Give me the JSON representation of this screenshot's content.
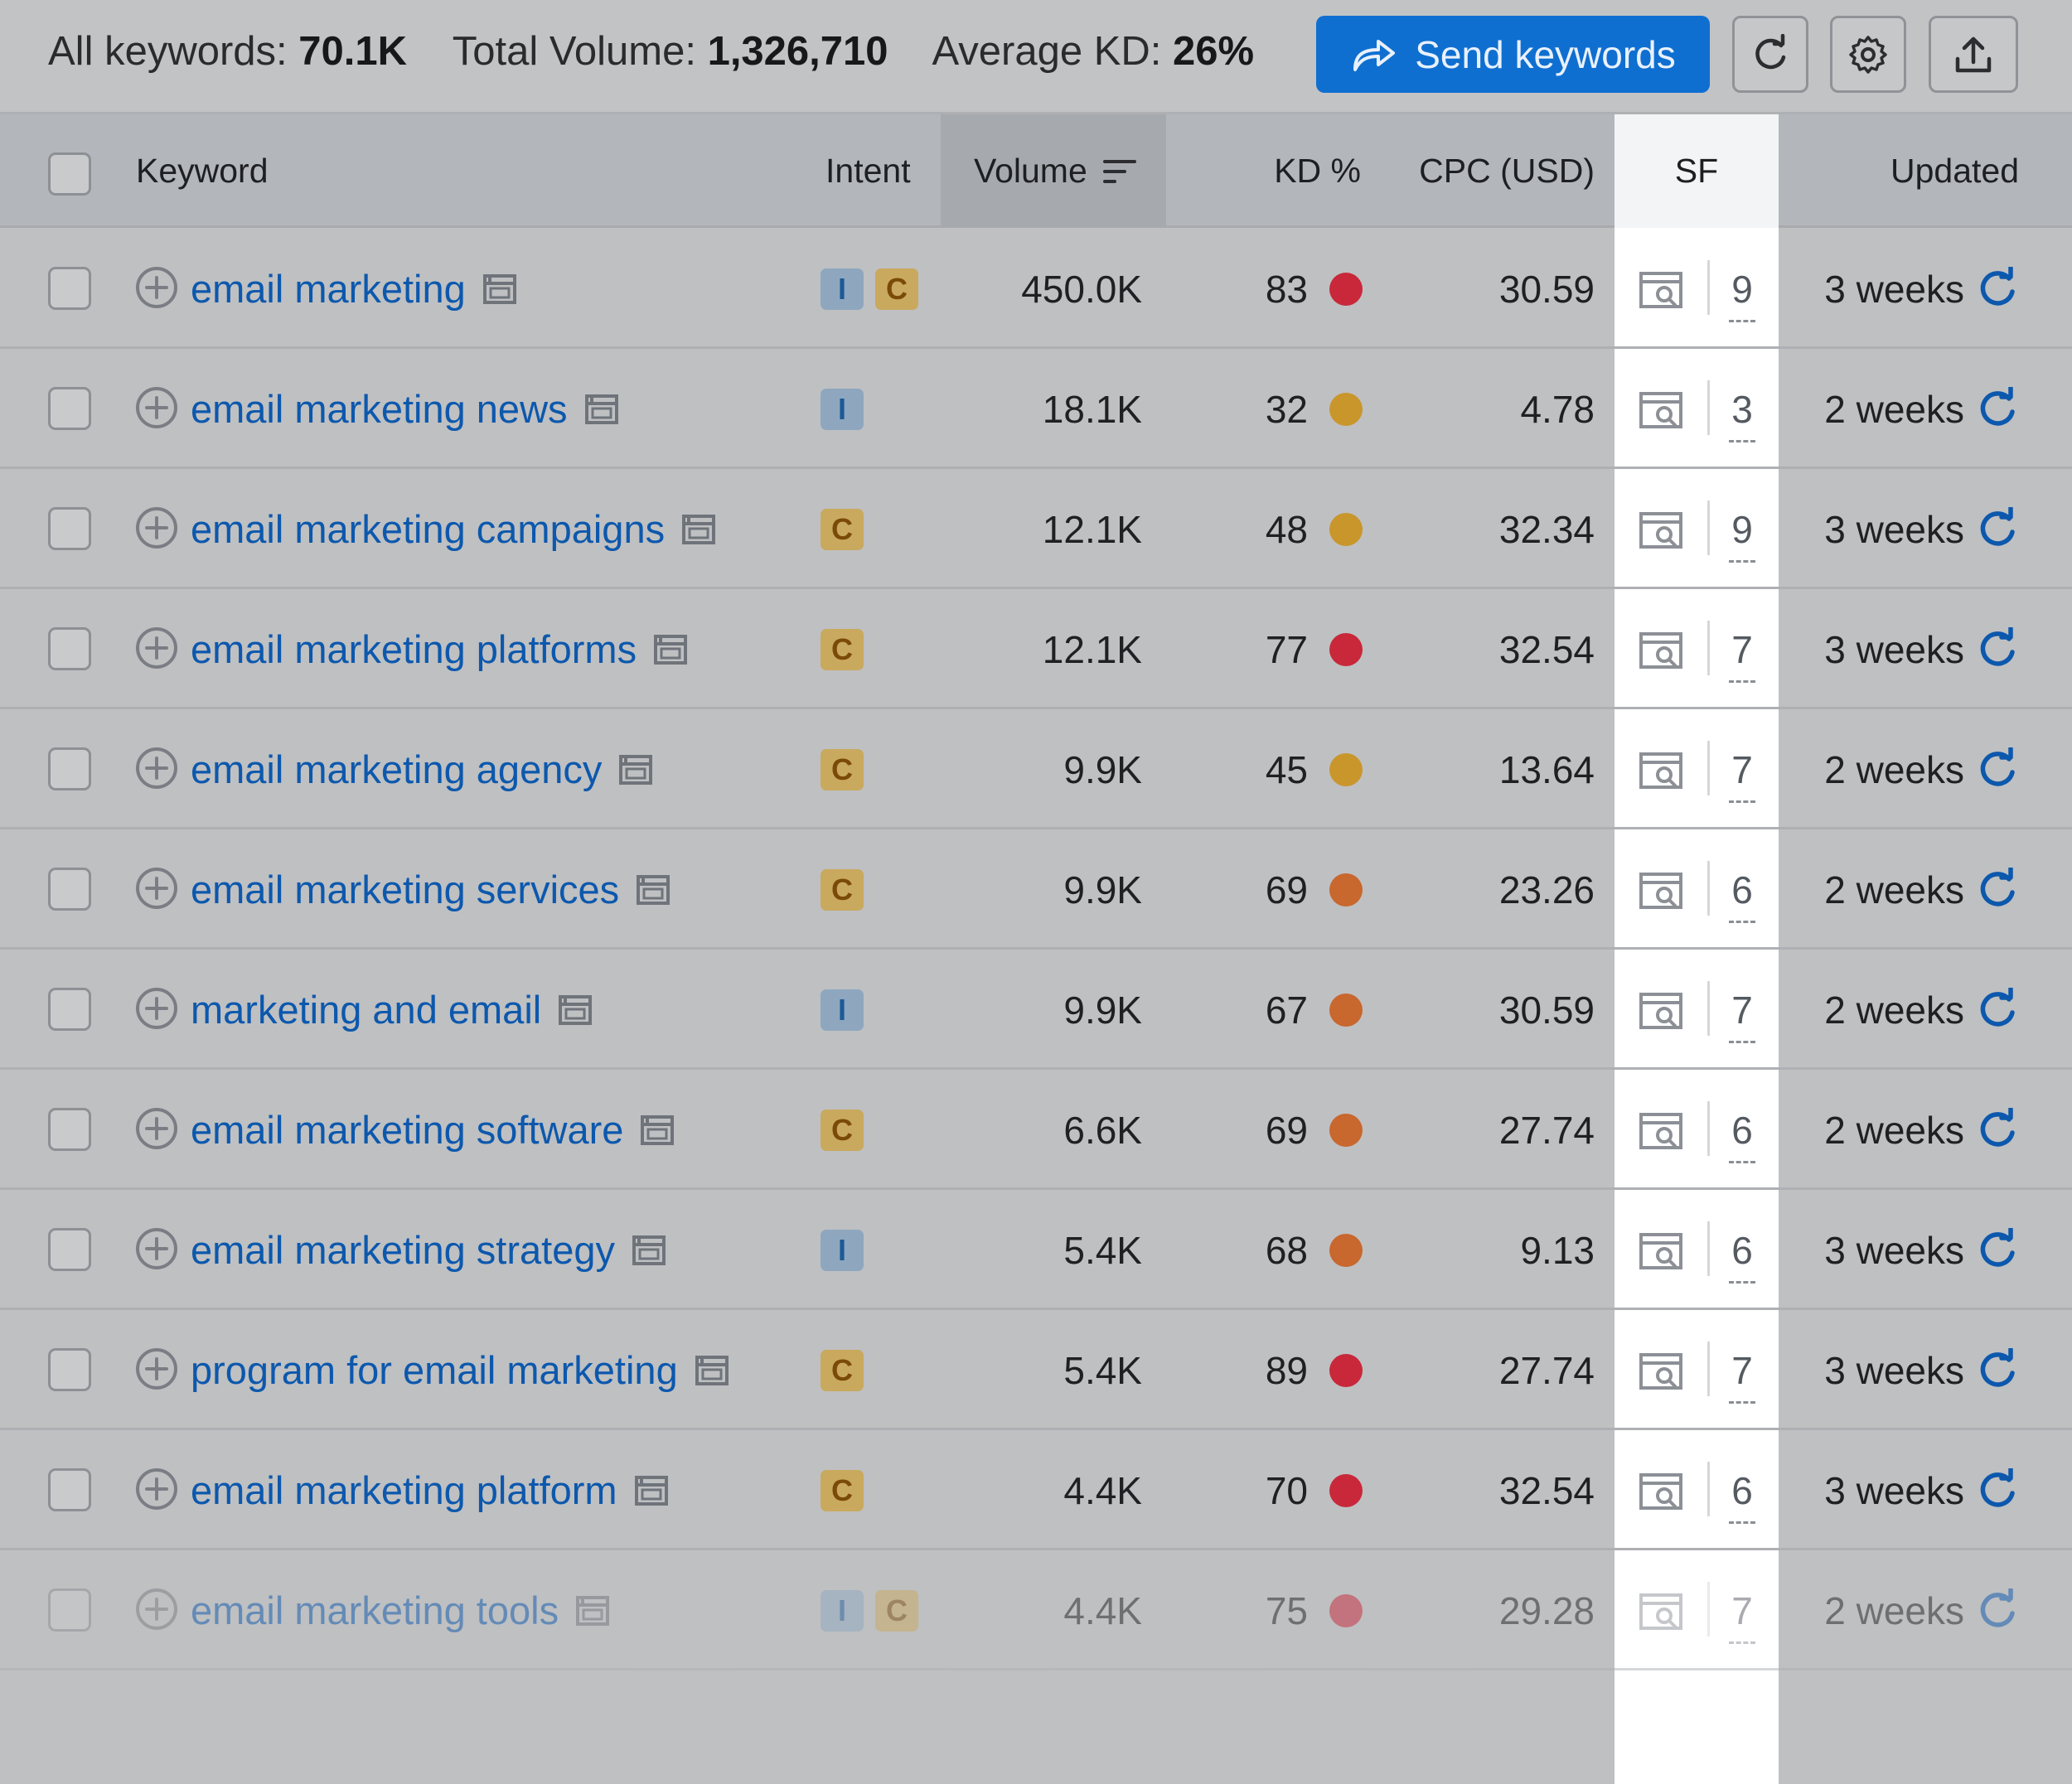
{
  "summary": {
    "all_keywords_label": "All keywords:",
    "all_keywords_value": "70.1K",
    "total_volume_label": "Total Volume:",
    "total_volume_value": "1,326,710",
    "average_kd_label": "Average KD:",
    "average_kd_value": "26%"
  },
  "toolbar": {
    "send_label": "Send keywords",
    "icons": [
      "share-arrow-icon",
      "refresh-icon",
      "gear-icon",
      "export-icon"
    ]
  },
  "columns": {
    "keyword": "Keyword",
    "intent": "Intent",
    "volume": "Volume",
    "kd": "KD %",
    "cpc": "CPC (USD)",
    "sf": "SF",
    "updated": "Updated"
  },
  "colors": {
    "accent": "#0f6fd1",
    "kd_red": "#c8283a",
    "kd_yellow": "#c9962c",
    "kd_orange": "#c8672e",
    "link": "#0c58ad"
  },
  "rows": [
    {
      "keyword": "email marketing",
      "intents": [
        "I",
        "C"
      ],
      "volume": "450.0K",
      "kd": "83",
      "kd_color": "#c8283a",
      "cpc": "30.59",
      "sf": "9",
      "updated": "3 weeks"
    },
    {
      "keyword": "email marketing news",
      "intents": [
        "I"
      ],
      "volume": "18.1K",
      "kd": "32",
      "kd_color": "#c9962c",
      "cpc": "4.78",
      "sf": "3",
      "updated": "2 weeks"
    },
    {
      "keyword": "email marketing campaigns",
      "intents": [
        "C"
      ],
      "volume": "12.1K",
      "kd": "48",
      "kd_color": "#c9962c",
      "cpc": "32.34",
      "sf": "9",
      "updated": "3 weeks"
    },
    {
      "keyword": "email marketing platforms",
      "intents": [
        "C"
      ],
      "volume": "12.1K",
      "kd": "77",
      "kd_color": "#c8283a",
      "cpc": "32.54",
      "sf": "7",
      "updated": "3 weeks"
    },
    {
      "keyword": "email marketing agency",
      "intents": [
        "C"
      ],
      "volume": "9.9K",
      "kd": "45",
      "kd_color": "#c9962c",
      "cpc": "13.64",
      "sf": "7",
      "updated": "2 weeks"
    },
    {
      "keyword": "email marketing services",
      "intents": [
        "C"
      ],
      "volume": "9.9K",
      "kd": "69",
      "kd_color": "#c8672e",
      "cpc": "23.26",
      "sf": "6",
      "updated": "2 weeks"
    },
    {
      "keyword": "marketing and email",
      "intents": [
        "I"
      ],
      "volume": "9.9K",
      "kd": "67",
      "kd_color": "#c8672e",
      "cpc": "30.59",
      "sf": "7",
      "updated": "2 weeks"
    },
    {
      "keyword": "email marketing software",
      "intents": [
        "C"
      ],
      "volume": "6.6K",
      "kd": "69",
      "kd_color": "#c8672e",
      "cpc": "27.74",
      "sf": "6",
      "updated": "2 weeks"
    },
    {
      "keyword": "email marketing strategy",
      "intents": [
        "I"
      ],
      "volume": "5.4K",
      "kd": "68",
      "kd_color": "#c8672e",
      "cpc": "9.13",
      "sf": "6",
      "updated": "3 weeks"
    },
    {
      "keyword": "program for email marketing",
      "intents": [
        "C"
      ],
      "volume": "5.4K",
      "kd": "89",
      "kd_color": "#c8283a",
      "cpc": "27.74",
      "sf": "7",
      "updated": "3 weeks"
    },
    {
      "keyword": "email marketing platform",
      "intents": [
        "C"
      ],
      "volume": "4.4K",
      "kd": "70",
      "kd_color": "#c8283a",
      "cpc": "32.54",
      "sf": "6",
      "updated": "3 weeks"
    },
    {
      "keyword": "email marketing tools",
      "intents": [
        "I",
        "C"
      ],
      "volume": "4.4K",
      "kd": "75",
      "kd_color": "#c8283a",
      "cpc": "29.28",
      "sf": "7",
      "updated": "2 weeks"
    }
  ]
}
